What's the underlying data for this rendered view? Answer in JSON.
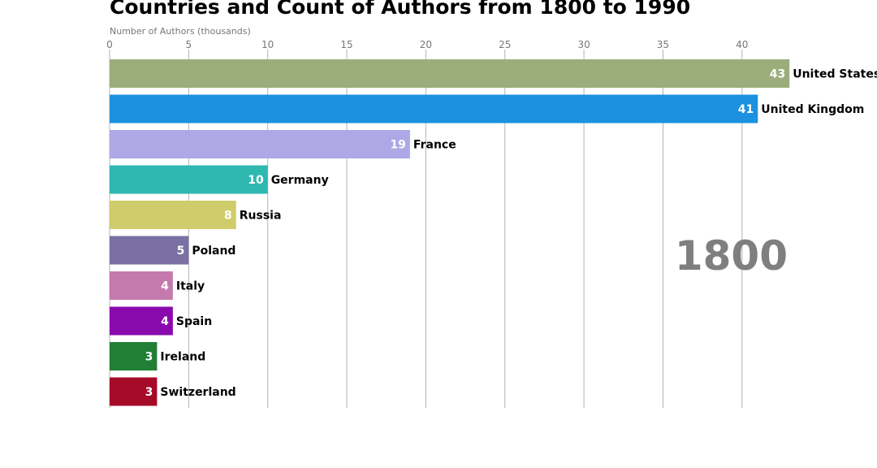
{
  "chart_data": {
    "type": "bar",
    "orientation": "horizontal",
    "title": "Countries and Count of Authors from 1800 to 1990",
    "xlabel": "Number of Authors (thousands)",
    "xlim": [
      0,
      43
    ],
    "xticks": [
      "0",
      "5",
      "10",
      "15",
      "20",
      "25",
      "30",
      "35",
      "40"
    ],
    "grid": true,
    "year": "1800",
    "categories": [
      "United States",
      "United Kingdom",
      "France",
      "Germany",
      "Russia",
      "Poland",
      "Italy",
      "Spain",
      "Ireland",
      "Switzerland"
    ],
    "values": [
      43,
      41,
      19,
      10,
      8,
      5,
      4,
      4,
      3,
      3
    ],
    "colors": [
      "#9aad7a",
      "#1b91e0",
      "#aea8e6",
      "#2eb8b0",
      "#cfcd6b",
      "#7a70a3",
      "#c57aae",
      "#8a0aae",
      "#217f35",
      "#a50a27"
    ]
  }
}
